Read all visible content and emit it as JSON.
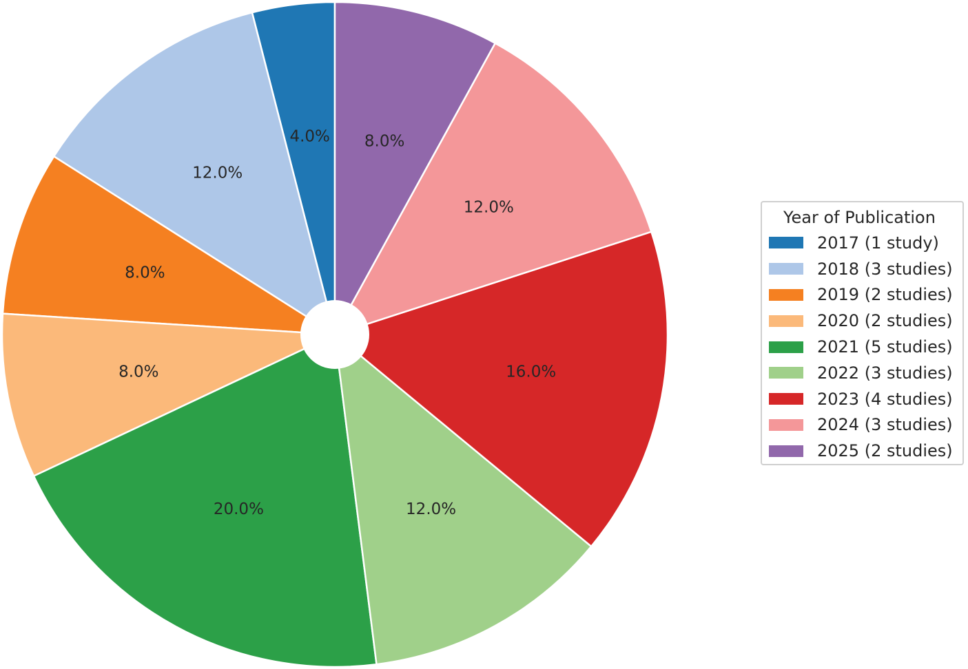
{
  "chart_data": {
    "type": "pie",
    "donut": true,
    "legend_title": "Year of Publication",
    "legend_placement": "right",
    "start_angle_deg": 90,
    "direction": "counterclockwise",
    "slices": [
      {
        "label": "2017 (1 study)",
        "value": 1,
        "percent_label": "4.0%",
        "color": "#1f77b4"
      },
      {
        "label": "2018 (3 studies)",
        "value": 3,
        "percent_label": "12.0%",
        "color": "#aec7e8"
      },
      {
        "label": "2019 (2 studies)",
        "value": 2,
        "percent_label": "8.0%",
        "color": "#f58021"
      },
      {
        "label": "2020 (2 studies)",
        "value": 2,
        "percent_label": "8.0%",
        "color": "#fbb97a"
      },
      {
        "label": "2021 (5 studies)",
        "value": 5,
        "percent_label": "20.0%",
        "color": "#2ca048"
      },
      {
        "label": "2022 (3 studies)",
        "value": 3,
        "percent_label": "12.0%",
        "color": "#a0d08a"
      },
      {
        "label": "2023 (4 studies)",
        "value": 4,
        "percent_label": "16.0%",
        "color": "#d62728"
      },
      {
        "label": "2024 (3 studies)",
        "value": 3,
        "percent_label": "12.0%",
        "color": "#f49799"
      },
      {
        "label": "2025 (2 studies)",
        "value": 2,
        "percent_label": "8.0%",
        "color": "#9168ab"
      }
    ]
  }
}
